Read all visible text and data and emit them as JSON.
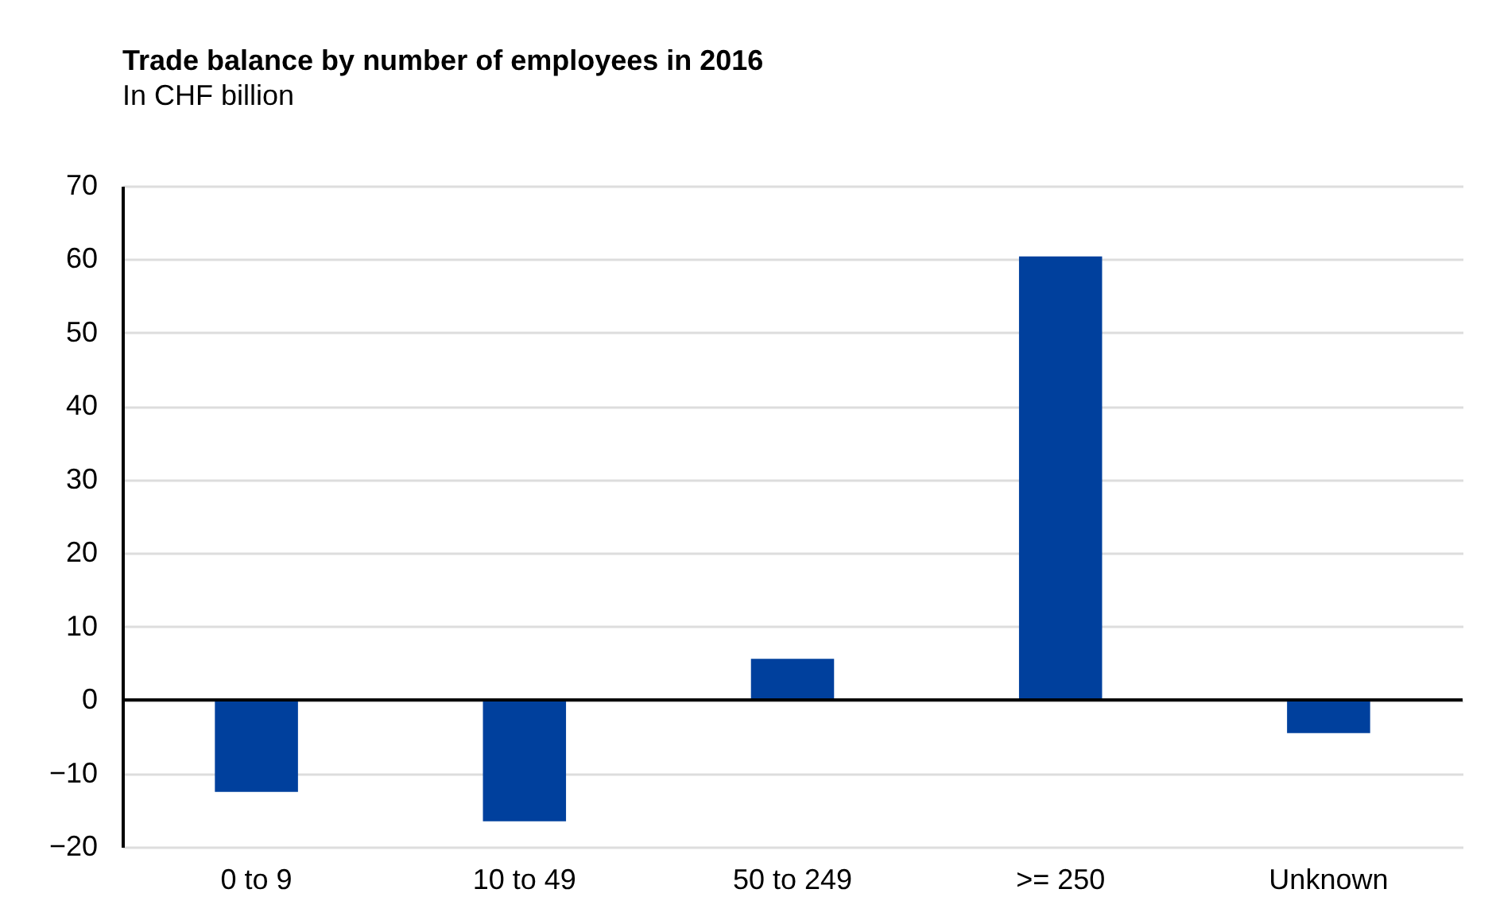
{
  "chart_data": {
    "type": "bar",
    "title": "Trade balance by number of employees in 2016",
    "subtitle": "In CHF billion",
    "categories": [
      "0 to 9",
      "10 to 49",
      "50 to 249",
      ">= 250",
      "Unknown"
    ],
    "values": [
      -12.5,
      -16.5,
      5.6,
      60.4,
      -4.5
    ],
    "color": "#00409d",
    "ylim": [
      -20,
      70
    ],
    "yticks": [
      -20,
      -10,
      0,
      10,
      20,
      30,
      40,
      50,
      60,
      70
    ],
    "grid": "y"
  }
}
